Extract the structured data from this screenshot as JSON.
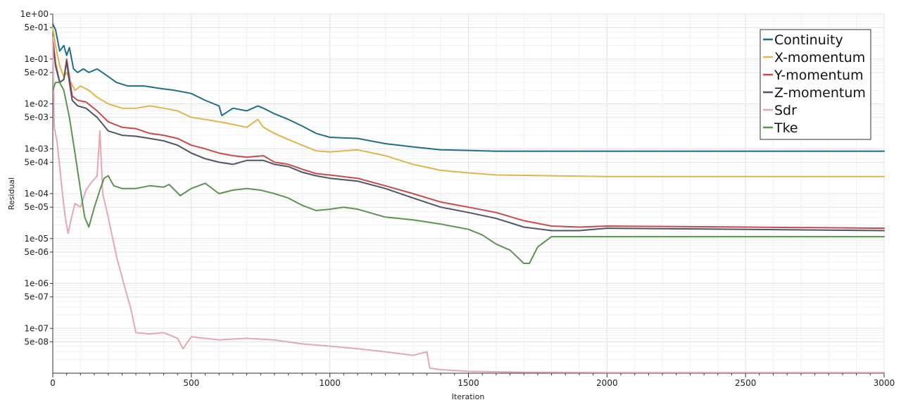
{
  "chart_data": {
    "type": "line",
    "title": "",
    "xlabel": "Iteration",
    "ylabel": "Residual",
    "xlim": [
      0,
      3000
    ],
    "ylim": [
      1e-08,
      1
    ],
    "y_scale": "log",
    "grid": true,
    "legend_position": "top-right",
    "x_ticks": [
      0,
      500,
      1000,
      1500,
      2000,
      2500,
      3000
    ],
    "x_tick_labels": [
      "0",
      "500",
      "1000",
      "1500",
      "2000",
      "2500",
      "3000"
    ],
    "y_ticks": [
      1,
      0.5,
      0.1,
      0.05,
      0.01,
      0.005,
      0.001,
      0.0005,
      0.0001,
      5e-05,
      1e-05,
      5e-06,
      1e-06,
      5e-07,
      1e-07,
      5e-08
    ],
    "y_tick_labels": [
      "1e+00",
      "5e-01",
      "1e-01",
      "5e-02",
      "1e-02",
      "5e-03",
      "1e-03",
      "5e-04",
      "1e-04",
      "5e-05",
      "1e-05",
      "5e-06",
      "1e-06",
      "5e-07",
      "1e-07",
      "5e-08"
    ],
    "series": [
      {
        "name": "Continuity",
        "color": "#1f6e8c",
        "x": [
          0,
          10,
          25,
          40,
          50,
          60,
          75,
          90,
          110,
          130,
          160,
          190,
          230,
          270,
          330,
          390,
          440,
          500,
          550,
          600,
          610,
          650,
          700,
          740,
          760,
          800,
          850,
          900,
          950,
          1000,
          1100,
          1200,
          1300,
          1400,
          1500,
          1600,
          2000,
          2500,
          3000
        ],
        "y": [
          0.6,
          0.45,
          0.15,
          0.2,
          0.12,
          0.18,
          0.06,
          0.05,
          0.06,
          0.05,
          0.06,
          0.045,
          0.03,
          0.025,
          0.025,
          0.022,
          0.02,
          0.017,
          0.012,
          0.009,
          0.0055,
          0.008,
          0.007,
          0.009,
          0.008,
          0.006,
          0.0045,
          0.0032,
          0.0022,
          0.0018,
          0.0017,
          0.0013,
          0.0011,
          0.00095,
          0.00092,
          0.00088,
          0.00088,
          0.00088,
          0.00088
        ]
      },
      {
        "name": "X-momentum",
        "color": "#e3b44a",
        "x": [
          0,
          10,
          25,
          40,
          50,
          65,
          80,
          100,
          130,
          160,
          200,
          250,
          300,
          350,
          400,
          450,
          500,
          550,
          600,
          650,
          700,
          740,
          760,
          800,
          850,
          900,
          950,
          1000,
          1100,
          1200,
          1300,
          1400,
          1500,
          1600,
          1800,
          2000,
          2500,
          3000
        ],
        "y": [
          0.5,
          0.2,
          0.07,
          0.04,
          0.05,
          0.03,
          0.02,
          0.025,
          0.02,
          0.014,
          0.01,
          0.008,
          0.008,
          0.009,
          0.008,
          0.007,
          0.005,
          0.0045,
          0.004,
          0.0035,
          0.003,
          0.0045,
          0.003,
          0.0022,
          0.0016,
          0.0012,
          0.0009,
          0.00085,
          0.00095,
          0.0007,
          0.00045,
          0.00033,
          0.00029,
          0.00026,
          0.00025,
          0.00024,
          0.00024,
          0.00024
        ]
      },
      {
        "name": "Y-momentum",
        "color": "#c94a4a",
        "x": [
          0,
          10,
          25,
          40,
          50,
          60,
          70,
          90,
          120,
          160,
          200,
          250,
          300,
          350,
          400,
          450,
          500,
          550,
          600,
          650,
          700,
          760,
          800,
          850,
          900,
          950,
          1000,
          1100,
          1200,
          1300,
          1400,
          1500,
          1600,
          1700,
          1800,
          1900,
          2000,
          2500,
          3000
        ],
        "y": [
          0.3,
          0.08,
          0.03,
          0.035,
          0.1,
          0.04,
          0.015,
          0.012,
          0.011,
          0.007,
          0.004,
          0.003,
          0.0028,
          0.0022,
          0.002,
          0.0017,
          0.0012,
          0.001,
          0.0008,
          0.0007,
          0.00065,
          0.0007,
          0.0005,
          0.00045,
          0.00035,
          0.00028,
          0.00026,
          0.00022,
          0.00015,
          0.0001,
          6.5e-05,
          5e-05,
          3.8e-05,
          2.5e-05,
          1.9e-05,
          1.8e-05,
          1.9e-05,
          1.8e-05,
          1.7e-05
        ]
      },
      {
        "name": "Z-momentum",
        "color": "#4e5566",
        "x": [
          0,
          10,
          25,
          40,
          50,
          60,
          70,
          90,
          120,
          160,
          200,
          250,
          300,
          350,
          400,
          450,
          500,
          550,
          600,
          650,
          700,
          760,
          800,
          850,
          900,
          950,
          1000,
          1100,
          1200,
          1300,
          1400,
          1500,
          1600,
          1700,
          1800,
          1900,
          2000,
          2500,
          3000
        ],
        "y": [
          0.25,
          0.07,
          0.03,
          0.035,
          0.09,
          0.03,
          0.012,
          0.009,
          0.008,
          0.005,
          0.0025,
          0.002,
          0.0019,
          0.0017,
          0.0015,
          0.0012,
          0.0008,
          0.0006,
          0.0005,
          0.00045,
          0.00055,
          0.00055,
          0.00045,
          0.0004,
          0.0003,
          0.00025,
          0.00022,
          0.00019,
          0.00013,
          8e-05,
          5e-05,
          3.8e-05,
          2.8e-05,
          1.8e-05,
          1.5e-05,
          1.5e-05,
          1.7e-05,
          1.6e-05,
          1.5e-05
        ]
      },
      {
        "name": "Sdr",
        "color": "#e6a6b3",
        "x": [
          0,
          5,
          15,
          25,
          35,
          45,
          55,
          65,
          80,
          100,
          120,
          140,
          160,
          170,
          180,
          200,
          230,
          260,
          280,
          300,
          350,
          400,
          450,
          470,
          500,
          600,
          700,
          800,
          900,
          1000,
          1100,
          1200,
          1300,
          1350,
          1360,
          1400,
          1500,
          1700,
          2000,
          2500,
          3000
        ],
        "y": [
          0.3,
          0.003,
          0.0015,
          0.0004,
          0.0001,
          3e-05,
          1.3e-05,
          2.5e-05,
          6e-05,
          5e-05,
          0.00012,
          0.00018,
          0.00025,
          0.0025,
          0.0001,
          3e-05,
          4e-06,
          8e-07,
          3e-07,
          8e-08,
          7.5e-08,
          8e-08,
          6e-08,
          3.5e-08,
          6.5e-08,
          5.5e-08,
          6e-08,
          5.5e-08,
          4.5e-08,
          4e-08,
          3.5e-08,
          3e-08,
          2.5e-08,
          3e-08,
          1.3e-08,
          1.2e-08,
          1.1e-08,
          1.05e-08,
          1e-08,
          1e-08,
          1e-08
        ]
      },
      {
        "name": "Tke",
        "color": "#5b9450",
        "x": [
          0,
          10,
          25,
          40,
          60,
          80,
          100,
          115,
          130,
          150,
          170,
          185,
          200,
          220,
          250,
          300,
          350,
          400,
          420,
          460,
          500,
          550,
          600,
          650,
          700,
          750,
          800,
          850,
          900,
          950,
          1000,
          1050,
          1100,
          1200,
          1300,
          1400,
          1500,
          1550,
          1600,
          1650,
          1700,
          1720,
          1750,
          1800,
          2000,
          2500,
          3000
        ],
        "y": [
          0.02,
          0.03,
          0.03,
          0.02,
          0.005,
          0.0008,
          0.00012,
          3e-05,
          1.8e-05,
          5e-05,
          0.00012,
          0.00022,
          0.00025,
          0.00015,
          0.00013,
          0.00013,
          0.00015,
          0.00014,
          0.00016,
          9e-05,
          0.00013,
          0.00017,
          0.0001,
          0.00012,
          0.00013,
          0.00012,
          0.0001,
          8e-05,
          5.5e-05,
          4.2e-05,
          4.5e-05,
          5e-05,
          4.5e-05,
          3e-05,
          2.6e-05,
          2.1e-05,
          1.6e-05,
          1.2e-05,
          7.5e-06,
          5.5e-06,
          2.8e-06,
          2.8e-06,
          6.5e-06,
          1.1e-05,
          1.1e-05,
          1.1e-05,
          1.1e-05
        ]
      }
    ]
  }
}
